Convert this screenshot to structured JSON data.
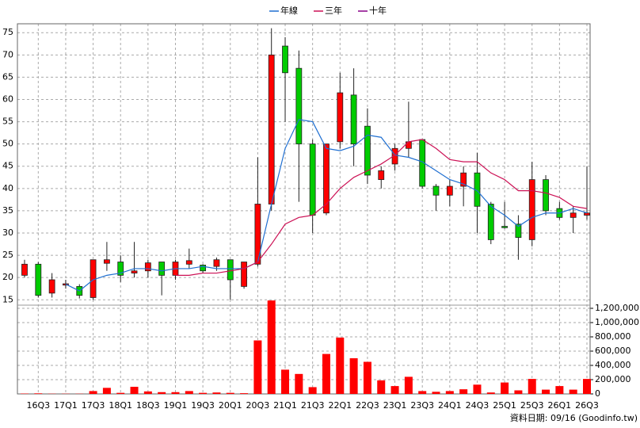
{
  "chart_data": {
    "type": "candlestick",
    "categories": [
      null,
      "16Q3",
      null,
      "17Q1",
      null,
      "17Q3",
      null,
      "18Q1",
      null,
      "18Q3",
      null,
      "19Q1",
      null,
      "19Q3",
      null,
      "20Q1",
      null,
      "20Q3",
      null,
      "21Q1",
      null,
      "21Q3",
      null,
      "22Q1",
      null,
      "22Q3",
      null,
      "23Q1",
      null,
      "23Q3",
      null,
      "24Q1",
      null,
      "24Q3",
      null,
      "25Q1",
      null,
      "25Q3",
      null,
      "26Q1",
      null,
      "26Q3"
    ],
    "open": [
      20.5,
      23,
      16.5,
      18.3,
      18,
      15.5,
      23.2,
      23.5,
      21,
      21.5,
      23.5,
      20.5,
      23,
      22.8,
      22.5,
      24,
      18,
      23,
      36.5,
      72,
      67,
      50,
      34.5,
      50.5,
      61,
      54,
      42,
      45.5,
      49,
      51,
      40.5,
      38.5,
      40.5,
      43.5,
      36.5,
      31.5,
      32,
      28.5,
      42,
      35.5,
      33.5,
      34
    ],
    "high": [
      24,
      23.5,
      21,
      19.5,
      18.5,
      24,
      28,
      25,
      28,
      24,
      23.5,
      24,
      26.5,
      23,
      24.5,
      24,
      23.5,
      47,
      76,
      74,
      71,
      51,
      50,
      66,
      67,
      58,
      45,
      50,
      59.5,
      51,
      41,
      42,
      45,
      48,
      37,
      37,
      34,
      46,
      43,
      37,
      36,
      45
    ],
    "low": [
      20,
      15.5,
      15.5,
      17.5,
      15.3,
      15,
      21.5,
      19,
      20,
      20,
      16,
      19.5,
      22,
      21,
      21.5,
      15,
      17.5,
      22.5,
      35,
      55,
      37,
      30,
      34,
      49,
      45,
      41,
      40,
      44,
      47,
      40,
      35,
      36,
      36,
      30,
      27.5,
      31,
      24,
      27,
      34,
      33,
      30,
      33
    ],
    "close": [
      23,
      16,
      19.5,
      18.6,
      16,
      24,
      24,
      20.5,
      21.5,
      23.3,
      20.5,
      23.5,
      23.8,
      21.5,
      24,
      19.5,
      23.5,
      36.5,
      70,
      66,
      50,
      34,
      50,
      61.5,
      50,
      43,
      44,
      49,
      50.5,
      40.5,
      38.5,
      40.5,
      43.5,
      36,
      28.5,
      31.2,
      29,
      42,
      35,
      33.5,
      34.5,
      34.5
    ],
    "up_color": "#ff0000",
    "down_color": "#00cc00",
    "series": [
      {
        "name": "年線",
        "color": "#1f6fd1",
        "values": [
          null,
          null,
          null,
          18.5,
          17,
          19.5,
          20.5,
          21,
          22,
          22,
          21.5,
          22,
          22,
          22.5,
          22,
          22,
          22,
          23.5,
          36.5,
          49,
          55.5,
          55,
          49,
          48.5,
          49.5,
          52,
          51.5,
          47.5,
          47,
          46,
          44,
          42,
          41,
          39.5,
          36,
          34,
          31.5,
          33.5,
          34.5,
          34.5,
          35.5,
          34.5
        ]
      },
      {
        "name": "三年",
        "color": "#cc1155",
        "values": [
          null,
          null,
          null,
          null,
          null,
          null,
          null,
          null,
          null,
          null,
          null,
          20.5,
          20.5,
          21,
          21,
          21.5,
          22,
          23.5,
          27.5,
          32,
          33.5,
          34,
          36.5,
          40,
          42.5,
          44,
          45.5,
          47.5,
          50.5,
          51,
          49,
          46.5,
          46,
          46,
          43.5,
          42,
          39.5,
          39.5,
          39,
          38,
          36,
          35.5
        ]
      },
      {
        "name": "十年",
        "color": "#880088",
        "values": [
          null,
          null,
          null,
          null,
          null,
          null,
          null,
          null,
          null,
          null,
          null,
          null,
          null,
          null,
          null,
          null,
          null,
          null,
          null,
          null,
          null,
          null,
          null,
          null,
          null,
          null,
          null,
          null,
          null,
          null,
          null,
          null,
          null,
          null,
          null,
          null,
          null,
          null,
          null,
          null,
          null,
          null
        ]
      }
    ],
    "ylim": [
      13.8,
      77
    ],
    "yticks": [
      15,
      20,
      25,
      30,
      35,
      40,
      45,
      50,
      55,
      60,
      65,
      70,
      75
    ],
    "grid": true,
    "volume": {
      "type": "bar",
      "color": "#ff0000",
      "values": [
        5000,
        8000,
        3000,
        3000,
        3000,
        40000,
        85000,
        15000,
        100000,
        35000,
        25000,
        25000,
        40000,
        15000,
        20000,
        15000,
        10000,
        750000,
        1310000,
        340000,
        280000,
        95000,
        560000,
        790000,
        500000,
        450000,
        190000,
        110000,
        240000,
        40000,
        30000,
        40000,
        65000,
        130000,
        20000,
        160000,
        50000,
        210000,
        60000,
        110000,
        60000,
        210000
      ],
      "ylim": [
        0,
        1300000
      ],
      "yticks": [
        0,
        {
          "value": 200000,
          "label": "200,000"
        },
        {
          "value": 400000,
          "label": "400,000"
        },
        {
          "value": 600000,
          "label": "600,000"
        },
        {
          "value": 800000,
          "label": "800,000"
        },
        {
          "value": 1000000,
          "label": "1,000,000"
        },
        {
          "value": 1200000,
          "label": "1,200,000"
        }
      ]
    },
    "source": "資料日期: 09/16 (Goodinfo.tw)"
  }
}
